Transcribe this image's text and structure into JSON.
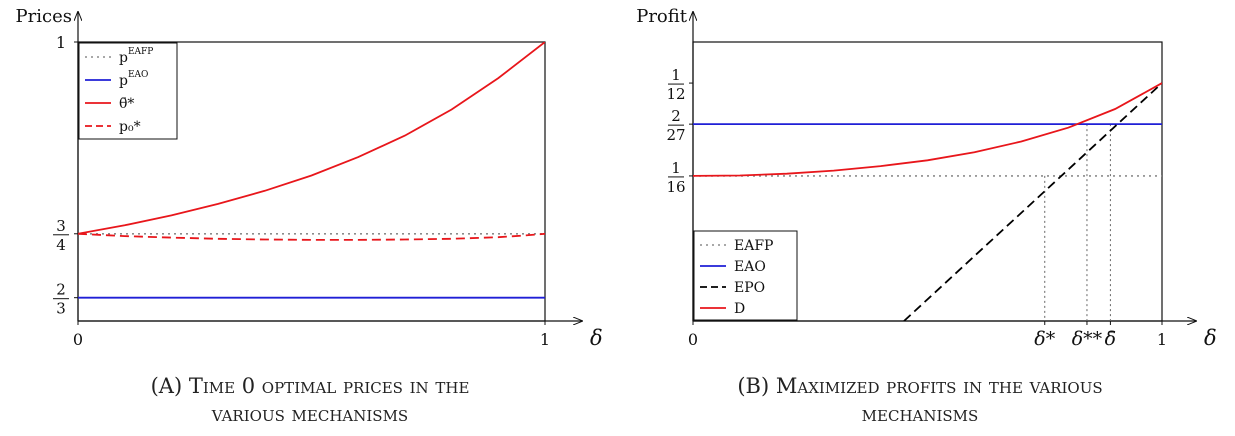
{
  "chart_data": [
    {
      "type": "line",
      "caption_tag": "(A)",
      "caption": "Time 0 optimal prices in the various mechanisms",
      "ylabel": "Prices",
      "xlabel": "δ",
      "xlim": [
        0,
        1
      ],
      "ylim": [
        0.6363,
        1
      ],
      "x_ticks": [
        {
          "value": 0,
          "label": "0"
        },
        {
          "value": 1,
          "label": "1"
        }
      ],
      "y_ticks": [
        {
          "value": 0.6667,
          "num": "2",
          "den": "3"
        },
        {
          "value": 0.75,
          "num": "3",
          "den": "4"
        },
        {
          "value": 1,
          "label": "1"
        }
      ],
      "legend": "top-left",
      "grid": false,
      "series": [
        {
          "name": "p",
          "superscript": "EAFP",
          "style": "dotted",
          "color": "#8c8c8c",
          "x": [
            0,
            1
          ],
          "y": [
            0.75,
            0.75
          ]
        },
        {
          "name": "p",
          "superscript": "EAO",
          "style": "solid",
          "color": "#1f1fd6",
          "x": [
            0,
            1
          ],
          "y": [
            0.6667,
            0.6667
          ]
        },
        {
          "name": "θ̄*",
          "style": "solid",
          "color": "#e8161b",
          "x": [
            0,
            0.1,
            0.2,
            0.3,
            0.4,
            0.5,
            0.6,
            0.7,
            0.8,
            0.9,
            1
          ],
          "y": [
            0.75,
            0.761,
            0.774,
            0.789,
            0.806,
            0.826,
            0.85,
            0.878,
            0.912,
            0.953,
            1.0
          ]
        },
        {
          "name": "p₀*",
          "style": "dashed",
          "color": "#e8161b",
          "x": [
            0,
            0.1,
            0.2,
            0.3,
            0.4,
            0.5,
            0.6,
            0.7,
            0.8,
            0.9,
            0.95,
            1
          ],
          "y": [
            0.75,
            0.747,
            0.745,
            0.7435,
            0.7425,
            0.742,
            0.742,
            0.7425,
            0.7435,
            0.7455,
            0.7475,
            0.75
          ]
        }
      ]
    },
    {
      "type": "line",
      "caption_tag": "(B)",
      "caption": "Maximized profits in the various mechanisms",
      "ylabel": "Profit",
      "xlabel": "δ",
      "xlim": [
        0,
        1
      ],
      "ylim": [
        0.03,
        0.0925
      ],
      "x_ticks": [
        {
          "value": 0,
          "label": "0"
        },
        {
          "value": 0.75,
          "label": "δ*"
        },
        {
          "value": 0.84,
          "label": "δ**"
        },
        {
          "value": 0.89,
          "label": "δ̄"
        },
        {
          "value": 1,
          "label": "1"
        }
      ],
      "y_ticks": [
        {
          "value": 0.0625,
          "num": "1",
          "den": "16"
        },
        {
          "value": 0.0741,
          "num": "2",
          "den": "27"
        },
        {
          "value": 0.0833,
          "num": "1",
          "den": "12"
        }
      ],
      "legend": "bottom-left",
      "grid": false,
      "series": [
        {
          "name": "EAFP",
          "style": "dotted",
          "color": "#8c8c8c",
          "x": [
            0,
            1
          ],
          "y": [
            0.0625,
            0.0625
          ]
        },
        {
          "name": "EAO",
          "style": "solid",
          "color": "#1f1fd6",
          "x": [
            0,
            1
          ],
          "y": [
            0.0741,
            0.0741
          ]
        },
        {
          "name": "EPO",
          "style": "dashed",
          "color": "#000000",
          "x": [
            0.45,
            1
          ],
          "y": [
            0.03,
            0.0833
          ]
        },
        {
          "name": "D",
          "style": "solid",
          "color": "#e8161b",
          "x": [
            0,
            0.1,
            0.2,
            0.3,
            0.4,
            0.5,
            0.6,
            0.7,
            0.8,
            0.9,
            1
          ],
          "y": [
            0.0625,
            0.0626,
            0.063,
            0.0637,
            0.0647,
            0.066,
            0.0678,
            0.0702,
            0.0733,
            0.0775,
            0.0833
          ]
        }
      ]
    }
  ],
  "page": {
    "caption_a_tag": "(A)",
    "caption_a_line1": "Time 0 optimal prices in the",
    "caption_a_line2": "various mechanisms",
    "caption_b_tag": "(B)",
    "caption_b_line1": "Maximized profits in the various",
    "caption_b_line2": "mechanisms"
  }
}
